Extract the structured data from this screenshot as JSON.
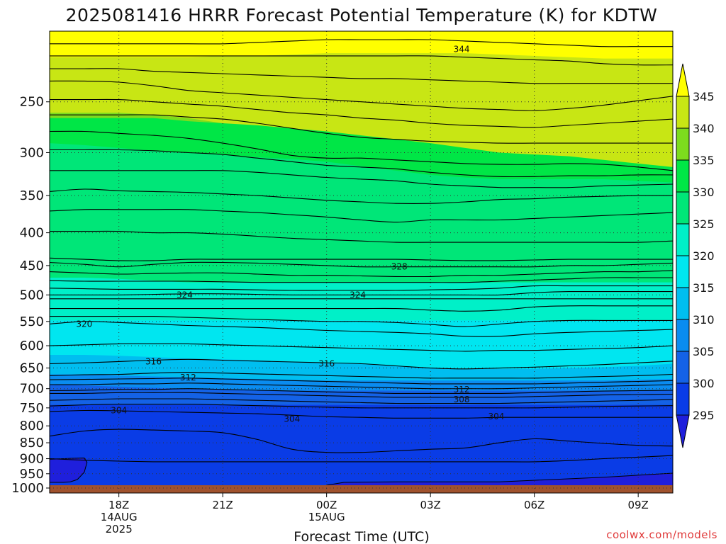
{
  "chart_data": {
    "type": "heatmap",
    "title": "2025081416 HRRR Forecast Potential Temperature (K) for KDTW",
    "xlabel": "Forecast Time (UTC)",
    "ylabel": "",
    "credit": "coolwx.com/models",
    "x_ticks": [
      {
        "hour": 2,
        "lines": [
          "18Z",
          "14AUG",
          "2025"
        ]
      },
      {
        "hour": 5,
        "lines": [
          "21Z"
        ]
      },
      {
        "hour": 8,
        "lines": [
          "00Z",
          "15AUG"
        ]
      },
      {
        "hour": 11,
        "lines": [
          "03Z"
        ]
      },
      {
        "hour": 14,
        "lines": [
          "06Z"
        ]
      },
      {
        "hour": 17,
        "lines": [
          "09Z"
        ]
      }
    ],
    "xlim": [
      0,
      18
    ],
    "y_ticks": [
      250,
      300,
      350,
      400,
      450,
      500,
      550,
      600,
      650,
      700,
      750,
      800,
      850,
      900,
      950,
      1000
    ],
    "ylim": [
      1000,
      200
    ],
    "y_scale": "log-pressure",
    "grid": true,
    "colorbar": {
      "levels": [
        295,
        300,
        305,
        310,
        315,
        320,
        325,
        330,
        335,
        340,
        345
      ],
      "colors": [
        "#1f1fdc",
        "#0a3ce6",
        "#1462e6",
        "#0a8cf0",
        "#00bef0",
        "#00e6f0",
        "#00f0c8",
        "#00e678",
        "#00e646",
        "#7ddc1e",
        "#c8e614",
        "#ffff00"
      ],
      "tick_labels": [
        "345",
        "340",
        "335",
        "330",
        "325",
        "320",
        "315",
        "310",
        "305",
        "300",
        "295"
      ]
    },
    "fill_bands": [
      {
        "upper": [
          345,
          345,
          345,
          345,
          345,
          345,
          345,
          345,
          345,
          345,
          345,
          345,
          345,
          345,
          345,
          345,
          345,
          345,
          345
        ],
        "color": "#ffff00"
      },
      {
        "upper": [
          213,
          213,
          213,
          213,
          213,
          212,
          212,
          211,
          210,
          210,
          210,
          210,
          210,
          211,
          212,
          213,
          214,
          214,
          214
        ],
        "color": "#c8e614"
      },
      {
        "upper": [
          260,
          260,
          260,
          262,
          265,
          270,
          275,
          280,
          285,
          292,
          300,
          305,
          310,
          312,
          312,
          312,
          313,
          314,
          318
        ],
        "color": "#7ddc1e"
      },
      {
        "upper": [
          265,
          265,
          265,
          265,
          268,
          270,
          272,
          275,
          278,
          282,
          286,
          290,
          295,
          300,
          302,
          304,
          308,
          312,
          316
        ],
        "color": "#00e646"
      },
      {
        "upper": [
          290,
          292,
          295,
          298,
          300,
          302,
          305,
          307,
          310,
          315,
          320,
          325,
          328,
          330,
          330,
          330,
          330,
          332,
          334
        ],
        "color": "#00e678"
      },
      {
        "upper": [
          470,
          470,
          472,
          475,
          478,
          478,
          478,
          478,
          478,
          478,
          478,
          478,
          478,
          478,
          478,
          478,
          478,
          478,
          478
        ],
        "color": "#00f0c8"
      },
      {
        "upper": [
          548,
          548,
          548,
          548,
          548,
          548,
          548,
          548,
          548,
          548,
          548,
          548,
          548,
          548,
          548,
          548,
          548,
          548,
          548
        ],
        "color": "#00e6f0"
      },
      {
        "upper": [
          620,
          620,
          622,
          625,
          628,
          630,
          632,
          635,
          638,
          640,
          645,
          650,
          652,
          652,
          652,
          650,
          648,
          645,
          640
        ],
        "color": "#00bef0"
      },
      {
        "upper": [
          665,
          665,
          668,
          670,
          672,
          674,
          676,
          678,
          680,
          680,
          680,
          680,
          680,
          680,
          680,
          680,
          680,
          678,
          676
        ],
        "color": "#0a8cf0"
      },
      {
        "upper": [
          690,
          692,
          695,
          698,
          700,
          702,
          705,
          705,
          705,
          705,
          705,
          705,
          705,
          705,
          705,
          705,
          705,
          705,
          705
        ],
        "color": "#1462e6"
      },
      {
        "upper": [
          742,
          742,
          742,
          742,
          742,
          742,
          742,
          742,
          742,
          742,
          742,
          742,
          742,
          742,
          742,
          742,
          742,
          742,
          742
        ],
        "color": "#0a3ce6"
      }
    ],
    "contours": [
      [
        194,
        194,
        194,
        194,
        194,
        194,
        194,
        194,
        194,
        194,
        194,
        194,
        194,
        194,
        194,
        194,
        194,
        194,
        194
      ],
      [
        203,
        203,
        203,
        203,
        203,
        203,
        202,
        201,
        200,
        200,
        200,
        200,
        201,
        202,
        203,
        204,
        205,
        205,
        205
      ],
      [
        212,
        212,
        212,
        212,
        212,
        212,
        212,
        212,
        212,
        212,
        212,
        212,
        213,
        214,
        215,
        216,
        218,
        219,
        219
      ],
      [
        222,
        222,
        222,
        224,
        225,
        226,
        227,
        228,
        229,
        230,
        230,
        231,
        232,
        233,
        234,
        234,
        234,
        234,
        234
      ],
      [
        232,
        232,
        233,
        236,
        240,
        242,
        244,
        246,
        248,
        250,
        252,
        254,
        256,
        257,
        258,
        256,
        253,
        249,
        245
      ],
      [
        248,
        248,
        248,
        250,
        252,
        254,
        257,
        260,
        262,
        265,
        267,
        270,
        272,
        273,
        274,
        272,
        270,
        268,
        266
      ],
      [
        262,
        262,
        262,
        262,
        264,
        266,
        270,
        275,
        280,
        284,
        286,
        288,
        289,
        290,
        290,
        290,
        290,
        290,
        290
      ],
      [
        278,
        278,
        280,
        282,
        285,
        290,
        296,
        303,
        306,
        306,
        308,
        310,
        312,
        313,
        313,
        312,
        313,
        316,
        320
      ],
      [
        297,
        297,
        297,
        298,
        300,
        302,
        306,
        310,
        314,
        316,
        318,
        322,
        325,
        327,
        327,
        326,
        326,
        325,
        325
      ],
      [
        320,
        320,
        320,
        320,
        320,
        320,
        322,
        325,
        328,
        330,
        332,
        336,
        338,
        340,
        340,
        340,
        338,
        337,
        336
      ],
      [
        345,
        342,
        344,
        345,
        346,
        348,
        350,
        353,
        356,
        358,
        360,
        360,
        358,
        355,
        354,
        352,
        351,
        350,
        350
      ],
      [
        370,
        368,
        368,
        368,
        368,
        370,
        372,
        375,
        378,
        382,
        385,
        382,
        382,
        382,
        380,
        378,
        376,
        374,
        372
      ],
      [
        398,
        398,
        398,
        400,
        400,
        402,
        405,
        408,
        410,
        412,
        414,
        414,
        414,
        414,
        414,
        414,
        414,
        414,
        412
      ],
      [
        438,
        440,
        442,
        442,
        440,
        440,
        440,
        440,
        440,
        440,
        440,
        441,
        442,
        442,
        441,
        440,
        440,
        440,
        440
      ],
      [
        445,
        448,
        452,
        448,
        445,
        445,
        446,
        448,
        450,
        452,
        452,
        452,
        452,
        452,
        452,
        450,
        450,
        448,
        446
      ],
      [
        460,
        462,
        464,
        463,
        462,
        462,
        464,
        466,
        466,
        467,
        468,
        468,
        466,
        466,
        464,
        462,
        460,
        460,
        458
      ],
      [
        475,
        476,
        476,
        476,
        476,
        477,
        478,
        478,
        478,
        478,
        478,
        478,
        478,
        476,
        474,
        472,
        470,
        470,
        470
      ],
      [
        488,
        489,
        490,
        490,
        490,
        490,
        491,
        492,
        492,
        492,
        492,
        491,
        490,
        488,
        484,
        484,
        484,
        484,
        484
      ],
      [
        500,
        500,
        500,
        499,
        498,
        498,
        499,
        500,
        500,
        500,
        500,
        500,
        500,
        500,
        496,
        494,
        494,
        494,
        494
      ],
      [
        507,
        507,
        507,
        507,
        507,
        507,
        507,
        507,
        507,
        507,
        507,
        507,
        507,
        507,
        507,
        507,
        507,
        507,
        507
      ],
      [
        525,
        525,
        525,
        525,
        525,
        525,
        525,
        525,
        525,
        525,
        525,
        528,
        530,
        528,
        522,
        520,
        520,
        520,
        520
      ],
      [
        540,
        540,
        540,
        540,
        542,
        544,
        546,
        548,
        550,
        550,
        552,
        556,
        560,
        555,
        550,
        548,
        548,
        548,
        548
      ],
      [
        555,
        550,
        552,
        555,
        558,
        560,
        562,
        565,
        568,
        570,
        572,
        575,
        580,
        580,
        575,
        572,
        570,
        568,
        566
      ],
      [
        600,
        598,
        596,
        596,
        596,
        598,
        600,
        602,
        604,
        606,
        608,
        610,
        612,
        610,
        610,
        608,
        606,
        604,
        600
      ],
      [
        640,
        638,
        635,
        632,
        630,
        632,
        634,
        636,
        638,
        640,
        645,
        650,
        652,
        650,
        648,
        645,
        642,
        638,
        634
      ],
      [
        668,
        666,
        665,
        662,
        660,
        662,
        664,
        666,
        668,
        670,
        672,
        674,
        674,
        674,
        674,
        672,
        670,
        668,
        665
      ],
      [
        678,
        677,
        676,
        675,
        674,
        676,
        678,
        680,
        682,
        684,
        686,
        688,
        688,
        688,
        688,
        686,
        684,
        682,
        680
      ],
      [
        690,
        690,
        688,
        688,
        686,
        688,
        690,
        692,
        694,
        696,
        698,
        700,
        700,
        700,
        698,
        696,
        694,
        692,
        690
      ],
      [
        705,
        704,
        702,
        702,
        700,
        702,
        704,
        706,
        708,
        710,
        712,
        712,
        712,
        712,
        710,
        708,
        706,
        705,
        704
      ],
      [
        712,
        712,
        710,
        710,
        710,
        712,
        714,
        716,
        718,
        720,
        722,
        722,
        722,
        722,
        720,
        718,
        716,
        715,
        714
      ],
      [
        730,
        728,
        726,
        726,
        726,
        728,
        730,
        732,
        734,
        736,
        738,
        738,
        738,
        738,
        736,
        734,
        732,
        730,
        728
      ],
      [
        745,
        742,
        740,
        740,
        740,
        742,
        744,
        746,
        748,
        750,
        750,
        750,
        750,
        750,
        750,
        748,
        746,
        745,
        744
      ],
      [
        760,
        757,
        758,
        760,
        762,
        764,
        766,
        770,
        774,
        776,
        778,
        778,
        778,
        776,
        776,
        776,
        776,
        776,
        776
      ],
      [
        830,
        815,
        810,
        812,
        815,
        820,
        840,
        870,
        880,
        880,
        875,
        870,
        866,
        850,
        838,
        845,
        852,
        858,
        860
      ],
      [
        900,
        905,
        908,
        910,
        910,
        910,
        910,
        910,
        910,
        910,
        910,
        910,
        910,
        910,
        910,
        906,
        900,
        895,
        890
      ]
    ],
    "contour_labels": [
      {
        "text": "344",
        "hour": 11.9,
        "p": 207
      },
      {
        "text": "328",
        "hour": 10.1,
        "p": 452
      },
      {
        "text": "324",
        "hour": 3.9,
        "p": 500
      },
      {
        "text": "324",
        "hour": 8.9,
        "p": 500
      },
      {
        "text": "320",
        "hour": 1.0,
        "p": 555
      },
      {
        "text": "316",
        "hour": 3.0,
        "p": 635
      },
      {
        "text": "316",
        "hour": 8.0,
        "p": 640
      },
      {
        "text": "312",
        "hour": 4.0,
        "p": 673
      },
      {
        "text": "312",
        "hour": 11.9,
        "p": 702
      },
      {
        "text": "308",
        "hour": 11.9,
        "p": 728
      },
      {
        "text": "304",
        "hour": 2.0,
        "p": 757
      },
      {
        "text": "304",
        "hour": 7.0,
        "p": 780
      },
      {
        "text": "304",
        "hour": 12.9,
        "p": 774
      }
    ],
    "cold_pools": [
      {
        "hours": [
          0,
          0.6,
          1.0,
          1.08,
          1.0,
          0.8,
          0.6,
          0.4,
          0
        ],
        "p": [
          902,
          899,
          898,
          912,
          945,
          970,
          978,
          980,
          980
        ]
      },
      {
        "hours": [
          8,
          8.5,
          10,
          13,
          16,
          18,
          18,
          8
        ],
        "p": [
          990,
          980,
          978,
          978,
          962,
          948,
          1000,
          1000
        ]
      }
    ],
    "ground_color": "#a0522d",
    "ground_p": 990
  }
}
